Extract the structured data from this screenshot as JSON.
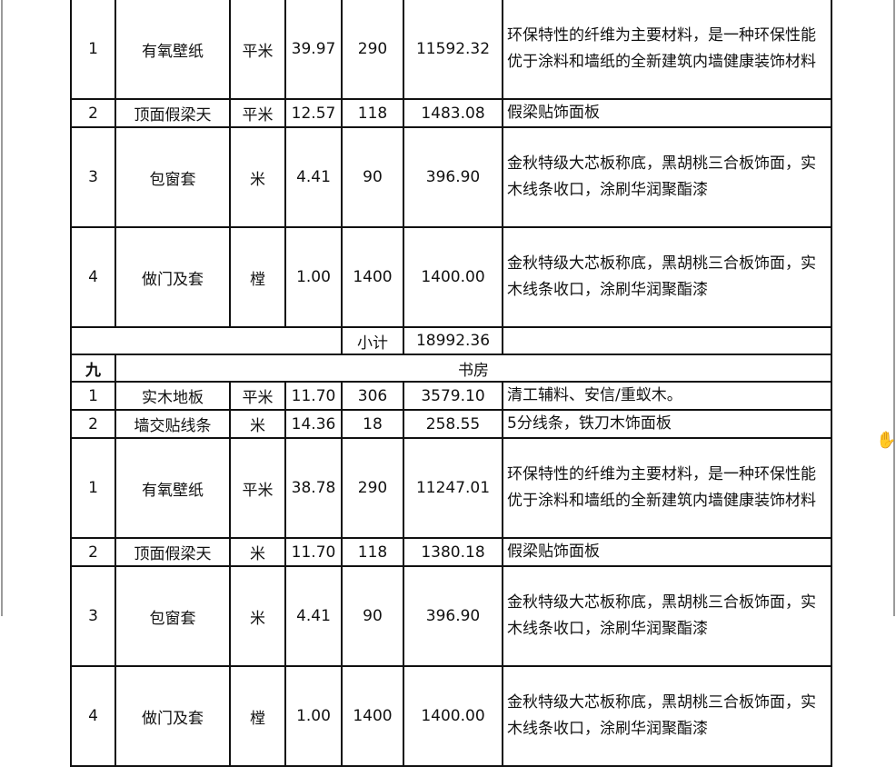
{
  "rows_top": [
    {
      "no": "1",
      "name": "有氧壁纸",
      "unit": "平米",
      "qty": "39.97",
      "price": "290",
      "total": "11592.32",
      "desc": "环保特性的纤维为主要材料，是一种环保性能优于涂料和墙纸的全新建筑内墙健康装饰材料"
    },
    {
      "no": "2",
      "name": "顶面假梁天",
      "unit": "平米",
      "qty": "12.57",
      "price": "118",
      "total": "1483.08",
      "desc": "假梁贴饰面板"
    },
    {
      "no": "3",
      "name": "包窗套",
      "unit": "米",
      "qty": "4.41",
      "price": "90",
      "total": "396.90",
      "desc": "金秋特级大芯板称底，黑胡桃三合板饰面，实木线条收口，涂刷华润聚酯漆"
    },
    {
      "no": "4",
      "name": "做门及套",
      "unit": "樘",
      "qty": "1.00",
      "price": "1400",
      "total": "1400.00",
      "desc": "金秋特级大芯板称底，黑胡桃三合板饰面，实木线条收口，涂刷华润聚酯漆"
    }
  ],
  "subtotal": {
    "label": "小计",
    "value": "18992.36"
  },
  "section": {
    "no": "九",
    "title": "书房"
  },
  "rows_bottom": [
    {
      "no": "1",
      "name": "实木地板",
      "unit": "平米",
      "qty": "11.70",
      "price": "306",
      "total": "3579.10",
      "desc": "清工辅料、安信/重蚁木。"
    },
    {
      "no": "2",
      "name": "墙交贴线条",
      "unit": "米",
      "qty": "14.36",
      "price": "18",
      "total": "258.55",
      "desc": "5分线条，铁刀木饰面板"
    },
    {
      "no": "1",
      "name": "有氧壁纸",
      "unit": "平米",
      "qty": "38.78",
      "price": "290",
      "total": "11247.01",
      "desc": "环保特性的纤维为主要材料，是一种环保性能优于涂料和墙纸的全新建筑内墙健康装饰材料"
    },
    {
      "no": "2",
      "name": "顶面假梁天",
      "unit": "米",
      "qty": "11.70",
      "price": "118",
      "total": "1380.18",
      "desc": "假梁贴饰面板"
    },
    {
      "no": "3",
      "name": "包窗套",
      "unit": "米",
      "qty": "4.41",
      "price": "90",
      "total": "396.90",
      "desc": "金秋特级大芯板称底，黑胡桃三合板饰面，实木线条收口，涂刷华润聚酯漆"
    },
    {
      "no": "4",
      "name": "做门及套",
      "unit": "樘",
      "qty": "1.00",
      "price": "1400",
      "total": "1400.00",
      "desc": "金秋特级大芯板称底，黑胡桃三合板饰面，实木线条收口，涂刷华润聚酯漆"
    }
  ],
  "cursor_icon": "hand-cursor-icon"
}
